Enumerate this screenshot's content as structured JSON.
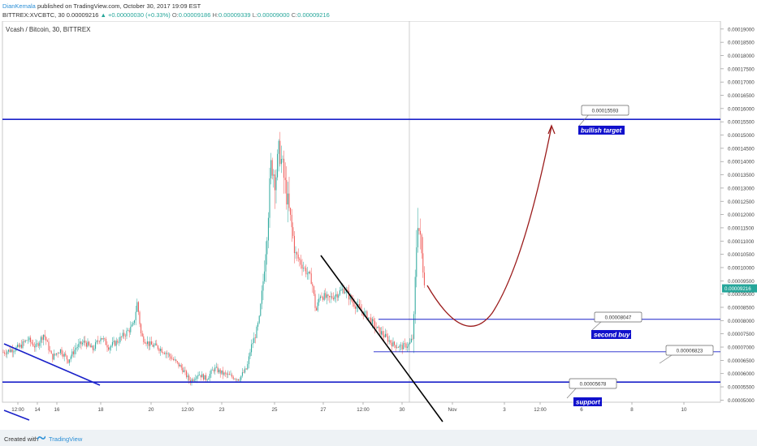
{
  "header": {
    "user": "DianKemala",
    "published": "published on TradingView.com, October 30, 2017 19:09 EST",
    "symbol": "BITTREX:XVCBTC, 30",
    "price": "0.00009216",
    "change": "▲ +0.00000030 (+0.33%)",
    "o": "0.00009186",
    "h": "0.00009339",
    "l": "0.00009000",
    "c": "0.00009216"
  },
  "chart_title": "Vcash / Bitcoin, 30, BITTREX",
  "footer": {
    "created_with": "Created with",
    "brand": "TradingView"
  },
  "colors": {
    "up": "#26a69a",
    "down": "#ef5350",
    "level_line": "#1a21c9",
    "trend_line": "#000000",
    "arrow": "#9b1c1c",
    "label_bg": "#1111cc",
    "price_tag": "#26a69a"
  },
  "chart_data": {
    "type": "candlestick",
    "title": "Vcash / Bitcoin, 30, BITTREX",
    "y_ticks": [
      "0.00019000",
      "0.00018500",
      "0.00018000",
      "0.00017500",
      "0.00017000",
      "0.00016500",
      "0.00016000",
      "0.00015500",
      "0.00015000",
      "0.00014500",
      "0.00014000",
      "0.00013500",
      "0.00013000",
      "0.00012500",
      "0.00012000",
      "0.00011500",
      "0.00011000",
      "0.00010500",
      "0.00010000",
      "0.00009500",
      "0.00009000",
      "0.00008500",
      "0.00008000",
      "0.00007500",
      "0.00007000",
      "0.00006500",
      "0.00006000",
      "0.00005500",
      "0.00005000"
    ],
    "ylim": [
      4.92e-05,
      0.000193
    ],
    "x_ticks": [
      "12:00",
      "14",
      "16",
      "18",
      "20",
      "12:00",
      "23",
      "25",
      "27",
      "12:00",
      "30",
      "Nov",
      "3",
      "12:00",
      "6",
      "8",
      "10"
    ],
    "current_price": "0.00009216",
    "price_path": [
      [
        0,
        6.8e-05
      ],
      [
        10,
        6.9e-05
      ],
      [
        20,
        7e-05
      ],
      [
        30,
        7.3e-05
      ],
      [
        40,
        7e-05
      ],
      [
        50,
        7.5e-05
      ],
      [
        60,
        6.6e-05
      ],
      [
        70,
        6.9e-05
      ],
      [
        80,
        6.5e-05
      ],
      [
        90,
        7e-05
      ],
      [
        100,
        7.2e-05
      ],
      [
        110,
        6.9e-05
      ],
      [
        120,
        7.4e-05
      ],
      [
        130,
        7e-05
      ],
      [
        140,
        7.2e-05
      ],
      [
        150,
        7.5e-05
      ],
      [
        160,
        7.8e-05
      ],
      [
        165,
        8.7e-05
      ],
      [
        170,
        7.4e-05
      ],
      [
        180,
        7.1e-05
      ],
      [
        190,
        7e-05
      ],
      [
        200,
        6.8e-05
      ],
      [
        210,
        6.5e-05
      ],
      [
        220,
        6.2e-05
      ],
      [
        230,
        5.7e-05
      ],
      [
        240,
        6e-05
      ],
      [
        250,
        5.8e-05
      ],
      [
        260,
        6.2e-05
      ],
      [
        270,
        6e-05
      ],
      [
        280,
        5.9e-05
      ],
      [
        290,
        5.8e-05
      ],
      [
        300,
        6.2e-05
      ],
      [
        305,
        7e-05
      ],
      [
        310,
        7.4e-05
      ],
      [
        315,
        8e-05
      ],
      [
        320,
        9.5e-05
      ],
      [
        325,
        0.000115
      ],
      [
        330,
        0.00014
      ],
      [
        335,
        0.000133
      ],
      [
        340,
        0.000145
      ],
      [
        345,
        0.000135
      ],
      [
        350,
        0.000125
      ],
      [
        355,
        0.000115
      ],
      [
        360,
        0.000105
      ],
      [
        370,
        0.0001
      ],
      [
        380,
        9.5e-05
      ],
      [
        385,
        8.3e-05
      ],
      [
        390,
        9e-05
      ],
      [
        400,
        8.8e-05
      ],
      [
        410,
        9e-05
      ],
      [
        420,
        9.2e-05
      ],
      [
        430,
        8.7e-05
      ],
      [
        440,
        8.4e-05
      ],
      [
        450,
        8.1e-05
      ],
      [
        460,
        7.7e-05
      ],
      [
        470,
        7.4e-05
      ],
      [
        480,
        7.1e-05
      ],
      [
        490,
        7e-05
      ],
      [
        500,
        7.1e-05
      ],
      [
        505,
        7.4e-05
      ],
      [
        510,
        0.00012
      ],
      [
        515,
        0.000105
      ],
      [
        520,
        9.4e-05
      ]
    ],
    "levels": [
      {
        "value": "0.00015593",
        "label": "bullish target"
      },
      {
        "value": "0.00008047",
        "label": "second buy"
      },
      {
        "value": "0.00006823",
        "label": ""
      },
      {
        "value": "0.00005678",
        "label": "support"
      }
    ]
  }
}
